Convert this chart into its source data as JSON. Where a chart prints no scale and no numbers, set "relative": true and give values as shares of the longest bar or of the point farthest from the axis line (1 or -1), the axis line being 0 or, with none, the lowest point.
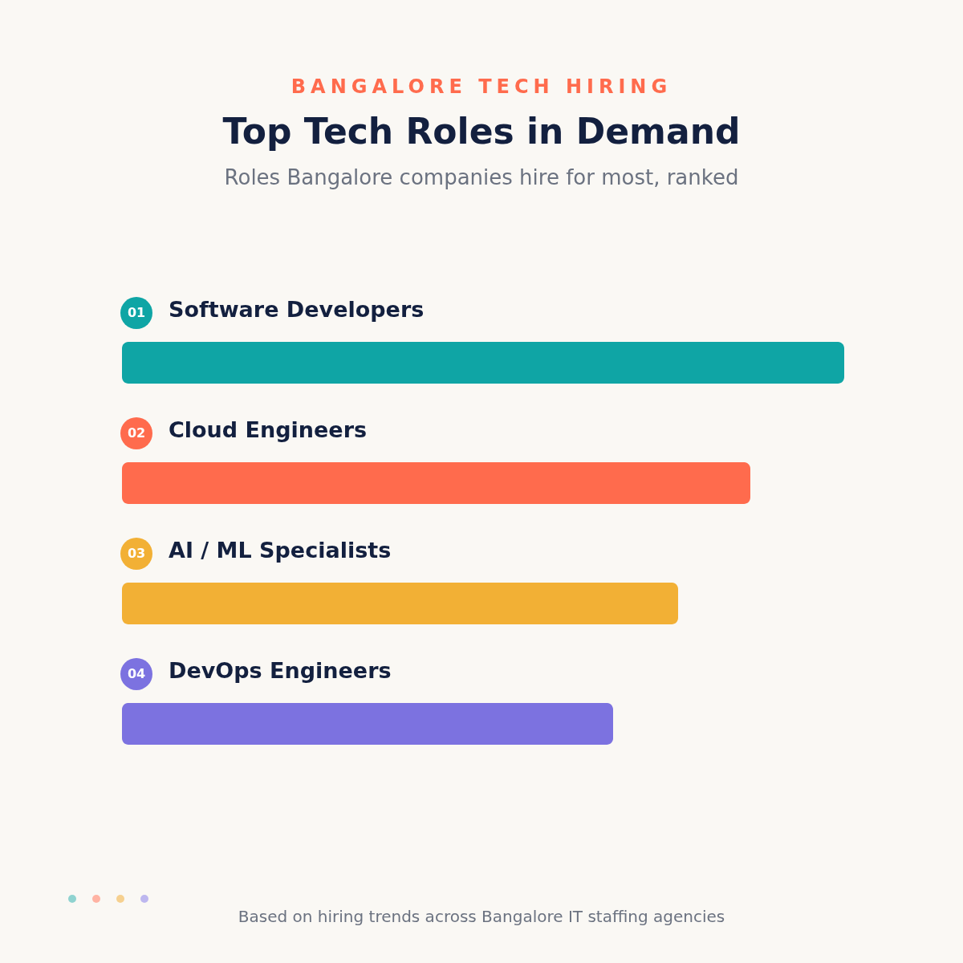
{
  "chart_data": {
    "type": "bar",
    "orientation": "horizontal",
    "relative": true,
    "title": "Top Tech Roles in Demand",
    "subtitle": "Roles Bangalore companies hire for most, ranked",
    "categories": [
      "Software Developers",
      "Cloud Engineers",
      "AI / ML Specialists",
      "DevOps Engineers"
    ],
    "values": [
      1,
      0.87,
      0.77,
      0.68
    ],
    "colors": [
      "#0fa5a5",
      "#ff6b4d",
      "#f2b035",
      "#7c72e0"
    ],
    "annotations": [
      "BANGALORE TECH HIRING",
      "01",
      "02",
      "03",
      "04",
      "Based on hiring trends across Bangalore IT staffing agencies"
    ]
  }
}
